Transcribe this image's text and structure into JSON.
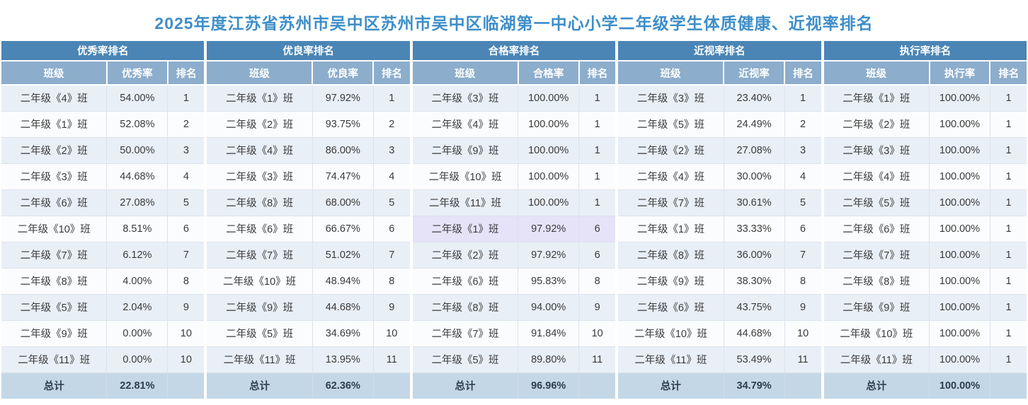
{
  "title": {
    "text": "2025年度江苏省苏州市吴中区苏州市吴中区临湖第一中心小学二年级学生体质健康、近视率排名"
  },
  "columns": {
    "class": "班级",
    "rank": "排名"
  },
  "total_label": "总计",
  "colors": {
    "title_text": "#3d8ec8",
    "table_header_bg": "#4a85b5",
    "column_header_bg": "#8cadcc",
    "row_odd_bg": "#e8eff7",
    "row_even_bg": "#fbfcfe",
    "total_row_bg": "#c3d7e7",
    "highlight_row_bg": "#e6e2f8",
    "cell_text": "#3a3a3a"
  },
  "tables": [
    {
      "title": "优秀率排名",
      "value_column": "优秀率",
      "total": "22.81%",
      "rows": [
        {
          "class": "二年级《4》班",
          "value": "54.00%",
          "rank": "1"
        },
        {
          "class": "二年级《1》班",
          "value": "52.08%",
          "rank": "2"
        },
        {
          "class": "二年级《2》班",
          "value": "50.00%",
          "rank": "3"
        },
        {
          "class": "二年级《3》班",
          "value": "44.68%",
          "rank": "4"
        },
        {
          "class": "二年级《6》班",
          "value": "27.08%",
          "rank": "5"
        },
        {
          "class": "二年级《10》班",
          "value": "8.51%",
          "rank": "6"
        },
        {
          "class": "二年级《7》班",
          "value": "6.12%",
          "rank": "7"
        },
        {
          "class": "二年级《8》班",
          "value": "4.00%",
          "rank": "8"
        },
        {
          "class": "二年级《5》班",
          "value": "2.04%",
          "rank": "9"
        },
        {
          "class": "二年级《9》班",
          "value": "0.00%",
          "rank": "10"
        },
        {
          "class": "二年级《11》班",
          "value": "0.00%",
          "rank": "10"
        }
      ]
    },
    {
      "title": "优良率排名",
      "value_column": "优良率",
      "total": "62.36%",
      "rows": [
        {
          "class": "二年级《1》班",
          "value": "97.92%",
          "rank": "1"
        },
        {
          "class": "二年级《2》班",
          "value": "93.75%",
          "rank": "2"
        },
        {
          "class": "二年级《4》班",
          "value": "86.00%",
          "rank": "3"
        },
        {
          "class": "二年级《3》班",
          "value": "74.47%",
          "rank": "4"
        },
        {
          "class": "二年级《8》班",
          "value": "68.00%",
          "rank": "5"
        },
        {
          "class": "二年级《6》班",
          "value": "66.67%",
          "rank": "6"
        },
        {
          "class": "二年级《7》班",
          "value": "51.02%",
          "rank": "7"
        },
        {
          "class": "二年级《10》班",
          "value": "48.94%",
          "rank": "8"
        },
        {
          "class": "二年级《9》班",
          "value": "44.68%",
          "rank": "9"
        },
        {
          "class": "二年级《5》班",
          "value": "34.69%",
          "rank": "10"
        },
        {
          "class": "二年级《11》班",
          "value": "13.95%",
          "rank": "11"
        }
      ]
    },
    {
      "title": "合格率排名",
      "value_column": "合格率",
      "total": "96.96%",
      "rows": [
        {
          "class": "二年级《3》班",
          "value": "100.00%",
          "rank": "1"
        },
        {
          "class": "二年级《4》班",
          "value": "100.00%",
          "rank": "1"
        },
        {
          "class": "二年级《9》班",
          "value": "100.00%",
          "rank": "1"
        },
        {
          "class": "二年级《10》班",
          "value": "100.00%",
          "rank": "1"
        },
        {
          "class": "二年级《11》班",
          "value": "100.00%",
          "rank": "1"
        },
        {
          "class": "二年级《1》班",
          "value": "97.92%",
          "rank": "6",
          "highlight": true
        },
        {
          "class": "二年级《2》班",
          "value": "97.92%",
          "rank": "6"
        },
        {
          "class": "二年级《6》班",
          "value": "95.83%",
          "rank": "8"
        },
        {
          "class": "二年级《8》班",
          "value": "94.00%",
          "rank": "9"
        },
        {
          "class": "二年级《7》班",
          "value": "91.84%",
          "rank": "10"
        },
        {
          "class": "二年级《5》班",
          "value": "89.80%",
          "rank": "11"
        }
      ]
    },
    {
      "title": "近视率排名",
      "value_column": "近视率",
      "total": "34.79%",
      "rows": [
        {
          "class": "二年级《3》班",
          "value": "23.40%",
          "rank": "1"
        },
        {
          "class": "二年级《5》班",
          "value": "24.49%",
          "rank": "2"
        },
        {
          "class": "二年级《2》班",
          "value": "27.08%",
          "rank": "3"
        },
        {
          "class": "二年级《4》班",
          "value": "30.00%",
          "rank": "4"
        },
        {
          "class": "二年级《7》班",
          "value": "30.61%",
          "rank": "5"
        },
        {
          "class": "二年级《1》班",
          "value": "33.33%",
          "rank": "6"
        },
        {
          "class": "二年级《8》班",
          "value": "36.00%",
          "rank": "7"
        },
        {
          "class": "二年级《9》班",
          "value": "38.30%",
          "rank": "8"
        },
        {
          "class": "二年级《6》班",
          "value": "43.75%",
          "rank": "9"
        },
        {
          "class": "二年级《10》班",
          "value": "44.68%",
          "rank": "10"
        },
        {
          "class": "二年级《11》班",
          "value": "53.49%",
          "rank": "11"
        }
      ]
    },
    {
      "title": "执行率排名",
      "value_column": "执行率",
      "total": "100.00%",
      "rows": [
        {
          "class": "二年级《1》班",
          "value": "100.00%",
          "rank": "1"
        },
        {
          "class": "二年级《2》班",
          "value": "100.00%",
          "rank": "1"
        },
        {
          "class": "二年级《3》班",
          "value": "100.00%",
          "rank": "1"
        },
        {
          "class": "二年级《4》班",
          "value": "100.00%",
          "rank": "1"
        },
        {
          "class": "二年级《5》班",
          "value": "100.00%",
          "rank": "1"
        },
        {
          "class": "二年级《6》班",
          "value": "100.00%",
          "rank": "1"
        },
        {
          "class": "二年级《7》班",
          "value": "100.00%",
          "rank": "1"
        },
        {
          "class": "二年级《8》班",
          "value": "100.00%",
          "rank": "1"
        },
        {
          "class": "二年级《9》班",
          "value": "100.00%",
          "rank": "1"
        },
        {
          "class": "二年级《10》班",
          "value": "100.00%",
          "rank": "1"
        },
        {
          "class": "二年级《11》班",
          "value": "100.00%",
          "rank": "1"
        }
      ]
    }
  ]
}
